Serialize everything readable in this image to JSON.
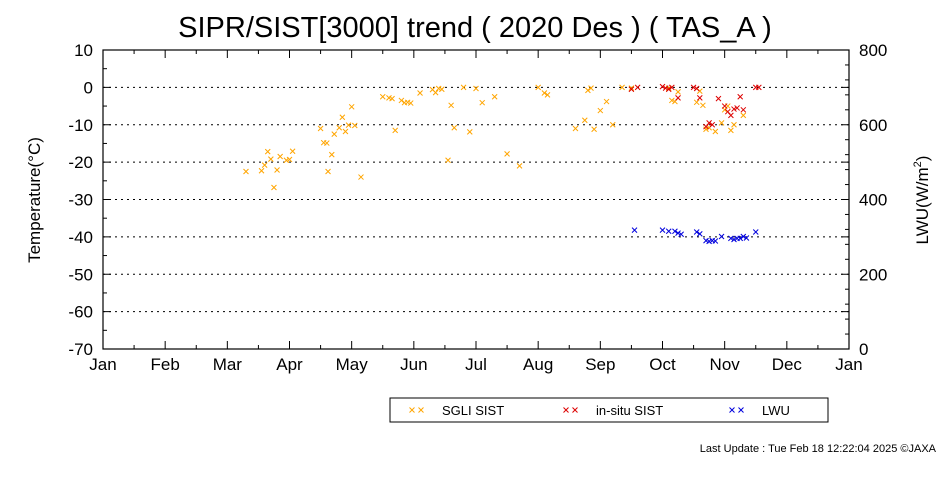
{
  "chart_data": {
    "type": "scatter",
    "title": "SIPR/SIST[3000] trend ( 2020 Des ) ( TAS_A )",
    "ylabel": "Temperature(°C)",
    "y2label_main": "LWU(W/m",
    "y2label_sup": "2",
    "y2label_tail": ")",
    "ylim": [
      -70,
      10
    ],
    "y2lim": [
      0,
      800
    ],
    "yticks": [
      "10",
      "0",
      "-10",
      "-20",
      "-30",
      "-40",
      "-50",
      "-60",
      "-70"
    ],
    "y2ticks": [
      "800",
      "600",
      "400",
      "200",
      "0"
    ],
    "xticks": [
      "Jan",
      "Feb",
      "Mar",
      "Apr",
      "May",
      "Jun",
      "Jul",
      "Aug",
      "Sep",
      "Oct",
      "Nov",
      "Dec",
      "Jan"
    ],
    "grid": "horizontal dotted",
    "legend_position": "bottom-right",
    "series": [
      {
        "name": "SGLI SIST",
        "color": "#ffa500",
        "axis": "left",
        "points": [
          [
            2.3,
            -22.5
          ],
          [
            2.55,
            -22.3
          ],
          [
            2.6,
            -20.8
          ],
          [
            2.65,
            -17.2
          ],
          [
            2.7,
            -19.2
          ],
          [
            2.75,
            -26.8
          ],
          [
            2.8,
            -22.1
          ],
          [
            2.85,
            -18.5
          ],
          [
            2.95,
            -19.5
          ],
          [
            3.0,
            -19.3
          ],
          [
            3.05,
            -17.1
          ],
          [
            3.5,
            -11.0
          ],
          [
            3.55,
            -14.8
          ],
          [
            3.6,
            -14.9
          ],
          [
            3.62,
            -22.5
          ],
          [
            3.68,
            -18.0
          ],
          [
            3.72,
            -12.5
          ],
          [
            3.8,
            -10.8
          ],
          [
            3.85,
            -8.0
          ],
          [
            3.9,
            -11.8
          ],
          [
            3.95,
            -10.1
          ],
          [
            4.0,
            -5.2
          ],
          [
            4.05,
            -10.2
          ],
          [
            4.15,
            -24.0
          ],
          [
            4.5,
            -2.5
          ],
          [
            4.6,
            -2.8
          ],
          [
            4.65,
            -3.0
          ],
          [
            4.7,
            -11.5
          ],
          [
            4.8,
            -3.5
          ],
          [
            4.85,
            -4.1
          ],
          [
            4.9,
            -4.0
          ],
          [
            4.95,
            -4.2
          ],
          [
            5.1,
            -1.5
          ],
          [
            5.3,
            -0.6
          ],
          [
            5.35,
            -1.4
          ],
          [
            5.4,
            -0.3
          ],
          [
            5.45,
            -0.5
          ],
          [
            5.55,
            -19.5
          ],
          [
            5.6,
            -4.8
          ],
          [
            5.65,
            -10.8
          ],
          [
            5.8,
            0.0
          ],
          [
            5.9,
            -11.9
          ],
          [
            6.0,
            -0.3
          ],
          [
            6.1,
            -4.1
          ],
          [
            6.3,
            -2.5
          ],
          [
            6.5,
            -17.8
          ],
          [
            6.7,
            -21.0
          ],
          [
            7.0,
            0.0
          ],
          [
            7.1,
            -1.5
          ],
          [
            7.15,
            -2.0
          ],
          [
            7.6,
            -11.0
          ],
          [
            7.75,
            -8.8
          ],
          [
            7.8,
            -0.8
          ],
          [
            7.85,
            -0.2
          ],
          [
            7.9,
            -11.2
          ],
          [
            8.0,
            -6.2
          ],
          [
            8.1,
            -3.8
          ],
          [
            8.2,
            -10.0
          ],
          [
            8.35,
            0.0
          ],
          [
            8.5,
            -0.2
          ],
          [
            9.1,
            -0.2
          ],
          [
            9.15,
            -3.5
          ],
          [
            9.2,
            -3.8
          ],
          [
            9.25,
            -1.2
          ],
          [
            9.55,
            -4.0
          ],
          [
            9.6,
            -1.0
          ],
          [
            9.65,
            -4.8
          ],
          [
            9.7,
            -11.2
          ],
          [
            9.75,
            -10.8
          ],
          [
            9.85,
            -11.8
          ],
          [
            9.95,
            -9.5
          ],
          [
            10.0,
            -6.0
          ],
          [
            10.05,
            -5.0
          ],
          [
            10.1,
            -11.5
          ],
          [
            10.15,
            -10.0
          ],
          [
            10.3,
            -7.5
          ]
        ]
      },
      {
        "name": "in-situ SIST",
        "color": "#dd0000",
        "axis": "left",
        "points": [
          [
            8.5,
            -0.5
          ],
          [
            8.6,
            0.0
          ],
          [
            9.0,
            0.2
          ],
          [
            9.05,
            -0.2
          ],
          [
            9.1,
            -0.5
          ],
          [
            9.15,
            0.0
          ],
          [
            9.25,
            -2.8
          ],
          [
            9.5,
            0.0
          ],
          [
            9.55,
            -0.3
          ],
          [
            9.6,
            -2.8
          ],
          [
            9.7,
            -10.5
          ],
          [
            9.75,
            -9.5
          ],
          [
            9.8,
            -10.0
          ],
          [
            9.9,
            -3.0
          ],
          [
            10.0,
            -5.0
          ],
          [
            10.05,
            -6.5
          ],
          [
            10.1,
            -7.5
          ],
          [
            10.15,
            -5.8
          ],
          [
            10.2,
            -5.5
          ],
          [
            10.25,
            -2.5
          ],
          [
            10.3,
            -6.0
          ],
          [
            10.5,
            0.0
          ],
          [
            10.55,
            0.0
          ]
        ]
      },
      {
        "name": "LWU",
        "color": "#0000dd",
        "axis": "right",
        "points": [
          [
            8.55,
            318
          ],
          [
            9.0,
            318
          ],
          [
            9.1,
            315
          ],
          [
            9.2,
            315
          ],
          [
            9.25,
            310
          ],
          [
            9.3,
            307
          ],
          [
            9.55,
            313
          ],
          [
            9.6,
            308
          ],
          [
            9.7,
            290
          ],
          [
            9.75,
            288
          ],
          [
            9.8,
            290
          ],
          [
            9.85,
            289
          ],
          [
            9.95,
            301
          ],
          [
            10.1,
            296
          ],
          [
            10.15,
            293
          ],
          [
            10.2,
            296
          ],
          [
            10.25,
            296
          ],
          [
            10.3,
            301
          ],
          [
            10.35,
            297
          ],
          [
            10.5,
            313
          ]
        ]
      }
    ]
  },
  "footer": "Last Update : Tue Feb 18 12:22:04 2025  ©JAXA"
}
